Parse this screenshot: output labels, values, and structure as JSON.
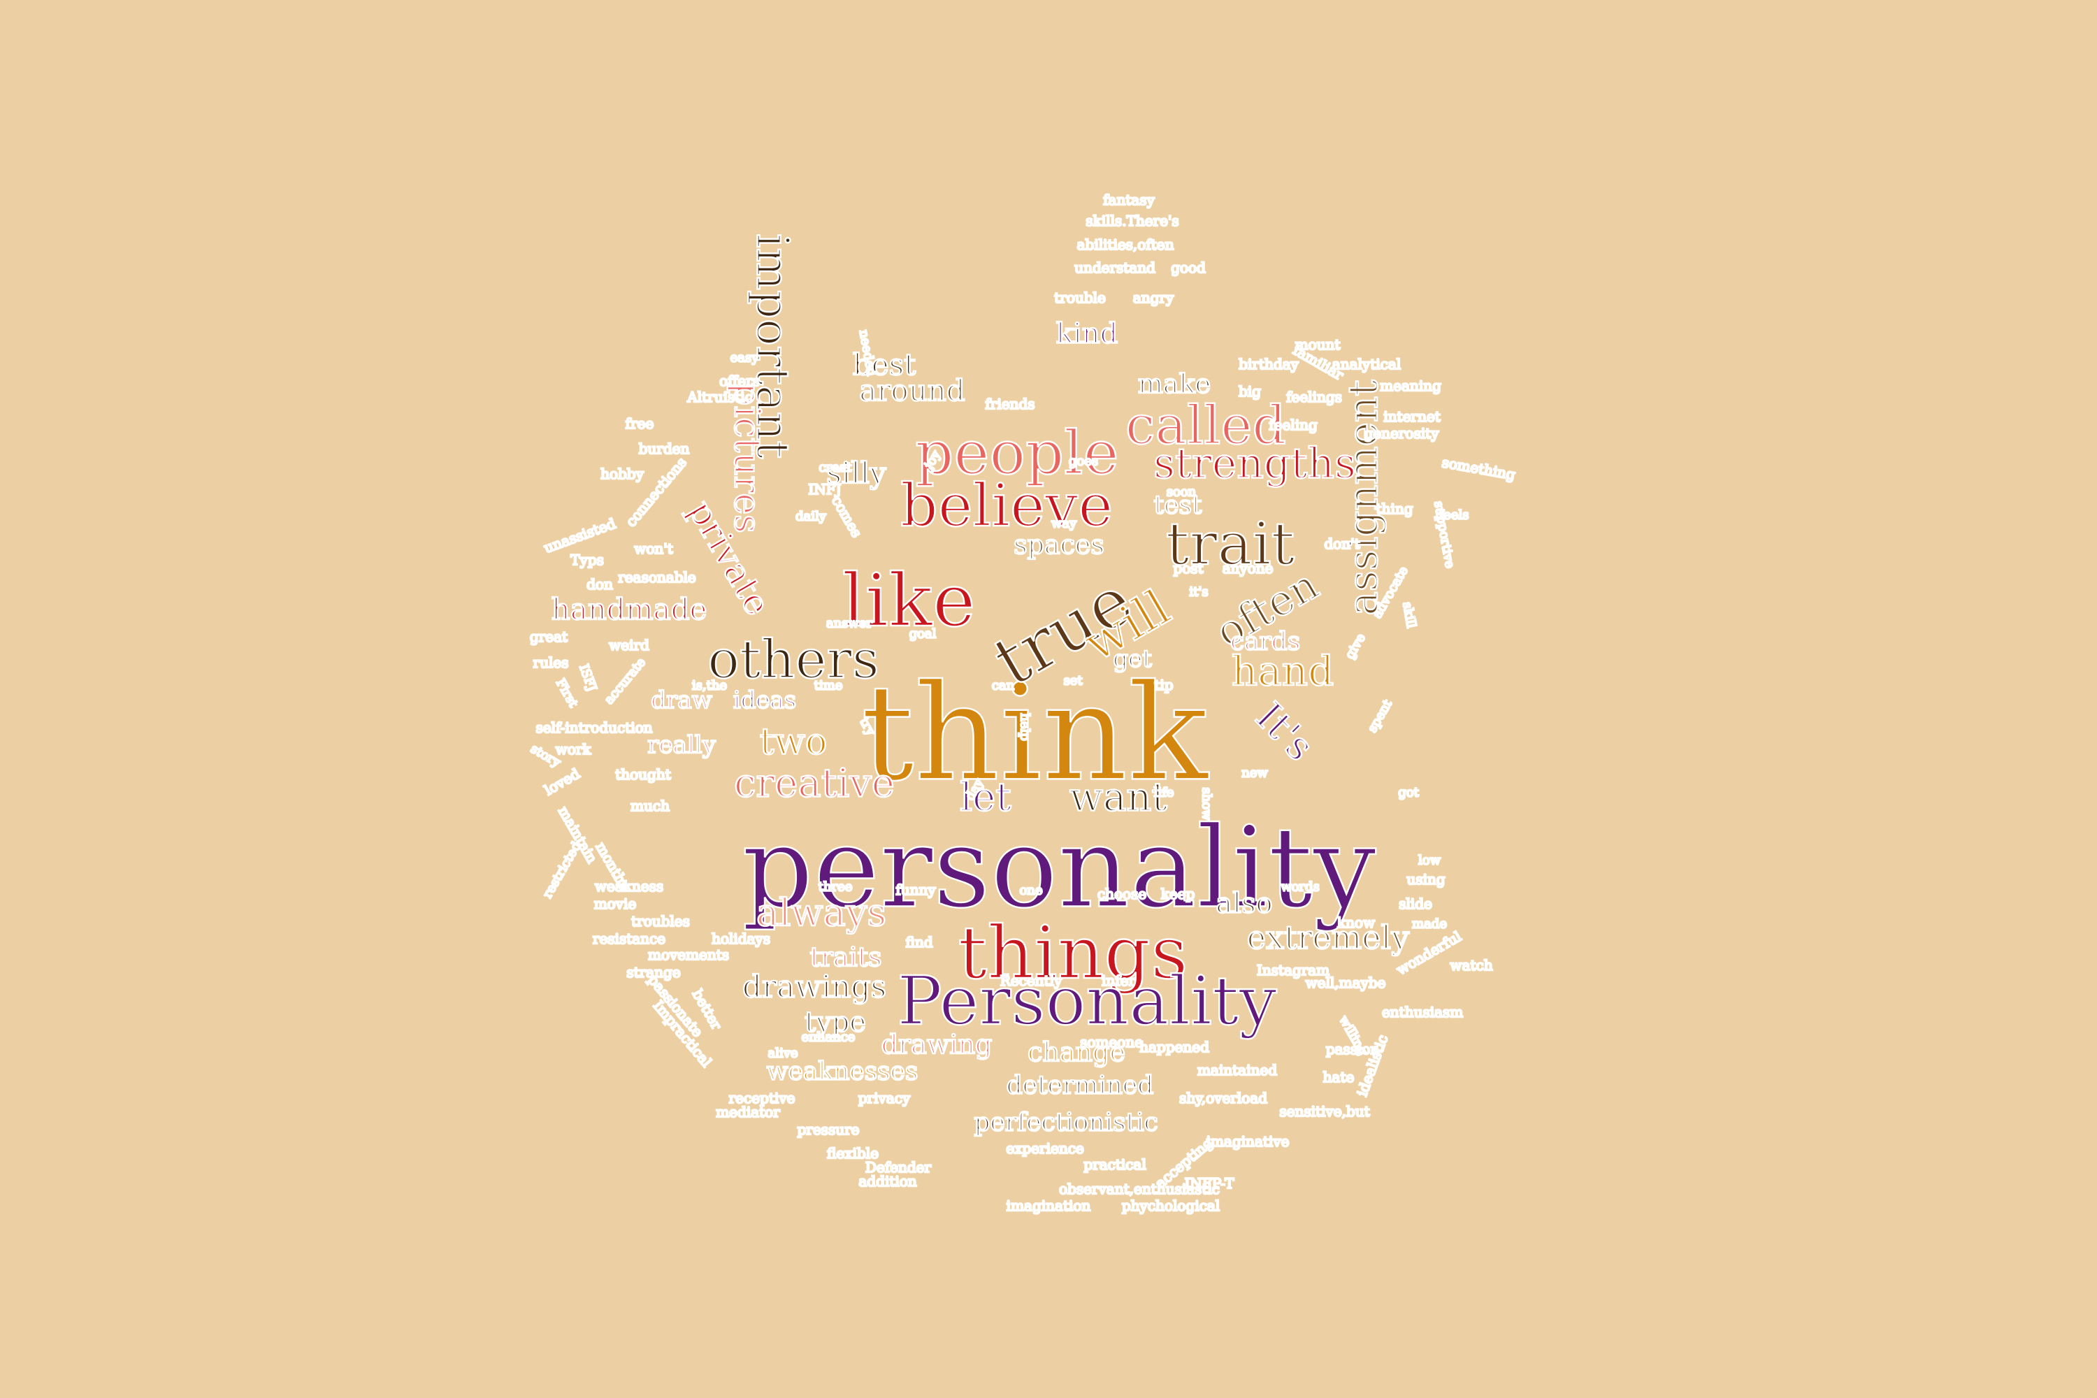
{
  "colors": {
    "background": "#eccfa2",
    "outline": "#ffffff",
    "palette": [
      "#d4870f",
      "#5f1a7c",
      "#c8161e",
      "#e86660",
      "#3f2611",
      "#6b4a22",
      "#9a6b4e",
      "#f08a79"
    ]
  },
  "words": [
    {
      "text": "think",
      "size": 190,
      "color": "#d4870f",
      "rot": 0
    },
    {
      "text": "personality",
      "size": 160,
      "color": "#5f1a7c",
      "rot": 0
    },
    {
      "text": "like",
      "size": 104,
      "color": "#c8161e",
      "rot": 0
    },
    {
      "text": "things",
      "size": 104,
      "color": "#c8161e",
      "rot": 0
    },
    {
      "text": "true",
      "size": 98,
      "color": "#5c3818",
      "rot": -30
    },
    {
      "text": "Personality",
      "size": 96,
      "color": "#5f1a7c",
      "rot": 0
    },
    {
      "text": "people",
      "size": 86,
      "color": "#e86660",
      "rot": 0
    },
    {
      "text": "believe",
      "size": 84,
      "color": "#c8161e",
      "rot": 0
    },
    {
      "text": "trait",
      "size": 84,
      "color": "#5c3818",
      "rot": 0
    },
    {
      "text": "called",
      "size": 76,
      "color": "#e86660",
      "rot": 0
    },
    {
      "text": "others",
      "size": 76,
      "color": "#3f2611",
      "rot": 0
    },
    {
      "text": "will",
      "size": 70,
      "color": "#d4870f",
      "rot": -30
    },
    {
      "text": "important",
      "size": 64,
      "color": "#3f2611",
      "rot": 90
    },
    {
      "text": "strengths",
      "size": 60,
      "color": "#c8161e",
      "rot": 0
    },
    {
      "text": "often",
      "size": 60,
      "color": "#6b4a22",
      "rot": -30
    },
    {
      "text": "hand",
      "size": 58,
      "color": "#d4870f",
      "rot": 0
    },
    {
      "text": "assignment",
      "size": 58,
      "color": "#6b4a22",
      "rot": -90
    },
    {
      "text": "It's",
      "size": 56,
      "color": "#5f1a7c",
      "rot": 45
    },
    {
      "text": "creative",
      "size": 56,
      "color": "#e86660",
      "rot": 0
    },
    {
      "text": "let",
      "size": 56,
      "color": "#5f1a7c",
      "rot": 0
    },
    {
      "text": "want",
      "size": 56,
      "color": "#3f2611",
      "rot": 0
    },
    {
      "text": "always",
      "size": 54,
      "color": "#f08a79",
      "rot": 0
    },
    {
      "text": "two",
      "size": 52,
      "color": "#d4870f",
      "rot": 0
    },
    {
      "text": "pictures",
      "size": 52,
      "color": "#e86660",
      "rot": 90
    },
    {
      "text": "private",
      "size": 50,
      "color": "#c8161e",
      "rot": 60
    },
    {
      "text": "extremely",
      "size": 46,
      "color": "#6b4a22",
      "rot": 0
    },
    {
      "text": "handmade",
      "size": 42,
      "color": "#c8161e",
      "rot": 0
    },
    {
      "text": "drawings",
      "size": 44,
      "color": "#3f2611",
      "rot": 0
    },
    {
      "text": "around",
      "size": 42,
      "color": "#6b4a22",
      "rot": 0
    },
    {
      "text": "best",
      "size": 42,
      "color": "#3f2611",
      "rot": 0
    },
    {
      "text": "make",
      "size": 38,
      "color": "#3f2611",
      "rot": 0
    },
    {
      "text": "kind",
      "size": 40,
      "color": "#5f1a7c",
      "rot": 0
    },
    {
      "text": "spaces",
      "size": 38,
      "color": "#6b4a22",
      "rot": 0
    },
    {
      "text": "silly",
      "size": 42,
      "color": "#3f2611",
      "rot": 0
    },
    {
      "text": "test",
      "size": 36,
      "color": "#9a6b4e",
      "rot": 0
    },
    {
      "text": "get",
      "size": 34,
      "color": "#3f2611",
      "rot": 0
    },
    {
      "text": "cards",
      "size": 36,
      "color": "#e86660",
      "rot": 0
    },
    {
      "text": "also",
      "size": 40,
      "color": "#3f2611",
      "rot": 0
    },
    {
      "text": "type",
      "size": 40,
      "color": "#3f2611",
      "rot": 0
    },
    {
      "text": "drawing",
      "size": 38,
      "color": "#e86660",
      "rot": 0
    },
    {
      "text": "change",
      "size": 38,
      "color": "#d4870f",
      "rot": 0
    },
    {
      "text": "traits",
      "size": 38,
      "color": "#e86660",
      "rot": 0
    },
    {
      "text": "weaknesses",
      "size": 36,
      "color": "#d4870f",
      "rot": 0
    },
    {
      "text": "determined",
      "size": 36,
      "color": "#3f2611",
      "rot": 0
    },
    {
      "text": "perfectionistic",
      "size": 36,
      "color": "#3f2611",
      "rot": 0
    },
    {
      "text": "really",
      "size": 34,
      "color": "#e86660",
      "rot": 0
    },
    {
      "text": "draw",
      "size": 34,
      "color": "#e86660",
      "rot": 0
    },
    {
      "text": "ideas",
      "size": 34,
      "color": "#5f1a7c",
      "rot": 0
    },
    {
      "text": "fantasy",
      "size": 20,
      "color": "#5f1a7c",
      "rot": 0
    },
    {
      "text": "skills.There's",
      "size": 20,
      "color": "#c8161e",
      "rot": 0
    },
    {
      "text": "abilities,often",
      "size": 20,
      "color": "#6b4a22",
      "rot": 0
    },
    {
      "text": "understand",
      "size": 20,
      "color": "#5f1a7c",
      "rot": 0
    },
    {
      "text": "good",
      "size": 20,
      "color": "#6b4a22",
      "rot": 0
    },
    {
      "text": "trouble",
      "size": 20,
      "color": "#6b4a22",
      "rot": 0
    },
    {
      "text": "angry",
      "size": 20,
      "color": "#6b4a22",
      "rot": 0
    },
    {
      "text": "mount",
      "size": 20,
      "color": "#c8161e",
      "rot": 0
    },
    {
      "text": "birthday",
      "size": 20,
      "color": "#9a6b4e",
      "rot": 0
    },
    {
      "text": "familiar",
      "size": 20,
      "color": "#5f1a7c",
      "rot": 30
    },
    {
      "text": "analytical",
      "size": 20,
      "color": "#6b4a22",
      "rot": 0
    },
    {
      "text": "meaning",
      "size": 20,
      "color": "#e86660",
      "rot": 0
    },
    {
      "text": "big",
      "size": 20,
      "color": "#5f1a7c",
      "rot": 0
    },
    {
      "text": "feelings",
      "size": 20,
      "color": "#f08a79",
      "rot": 0
    },
    {
      "text": "internet",
      "size": 20,
      "color": "#3f2611",
      "rot": 0
    },
    {
      "text": "feeling",
      "size": 20,
      "color": "#e86660",
      "rot": 0
    },
    {
      "text": "generosity",
      "size": 20,
      "color": "#d4870f",
      "rot": 0
    },
    {
      "text": "something",
      "size": 20,
      "color": "#6b4a22",
      "rot": 10
    },
    {
      "text": "supportive",
      "size": 18,
      "color": "#f08a79",
      "rot": 80
    },
    {
      "text": "feels",
      "size": 18,
      "color": "#9a6b4e",
      "rot": 0
    },
    {
      "text": "thing",
      "size": 20,
      "color": "#6b4a22",
      "rot": 0
    },
    {
      "text": "don't",
      "size": 20,
      "color": "#c8161e",
      "rot": 0
    },
    {
      "text": "advocate",
      "size": 18,
      "color": "#6b4a22",
      "rot": -60
    },
    {
      "text": "skill",
      "size": 18,
      "color": "#5f1a7c",
      "rot": 80
    },
    {
      "text": "easy",
      "size": 18,
      "color": "#9a6b4e",
      "rot": 0
    },
    {
      "text": "offers",
      "size": 20,
      "color": "#6b4a22",
      "rot": 0
    },
    {
      "text": "needed",
      "size": 18,
      "color": "#c8161e",
      "rot": 80
    },
    {
      "text": "Altruistic",
      "size": 20,
      "color": "#6b4a22",
      "rot": 0
    },
    {
      "text": "friends",
      "size": 20,
      "color": "#6b4a22",
      "rot": 0
    },
    {
      "text": "free",
      "size": 20,
      "color": "#c8161e",
      "rot": 0
    },
    {
      "text": "burden",
      "size": 20,
      "color": "#d4870f",
      "rot": 0
    },
    {
      "text": "joy",
      "size": 18,
      "color": "#f08a79",
      "rot": -60
    },
    {
      "text": "goes",
      "size": 18,
      "color": "#6b4a22",
      "rot": 0
    },
    {
      "text": "creat",
      "size": 18,
      "color": "#f08a79",
      "rot": 0
    },
    {
      "text": "hobby",
      "size": 20,
      "color": "#3f2611",
      "rot": 0
    },
    {
      "text": "INFJ",
      "size": 20,
      "color": "#9a6b4e",
      "rot": 0
    },
    {
      "text": "soon",
      "size": 18,
      "color": "#6b4a22",
      "rot": 0
    },
    {
      "text": "connections",
      "size": 20,
      "color": "#5f1a7c",
      "rot": -50
    },
    {
      "text": "comes",
      "size": 20,
      "color": "#c8161e",
      "rot": 60
    },
    {
      "text": "unassisted",
      "size": 20,
      "color": "#5f1a7c",
      "rot": -20
    },
    {
      "text": "daily",
      "size": 18,
      "color": "#9a6b4e",
      "rot": 0
    },
    {
      "text": "way",
      "size": 18,
      "color": "#9a6b4e",
      "rot": 0
    },
    {
      "text": "Typs",
      "size": 20,
      "color": "#9a6b4e",
      "rot": 0
    },
    {
      "text": "won't",
      "size": 20,
      "color": "#f08a79",
      "rot": 0
    },
    {
      "text": "reasonable",
      "size": 20,
      "color": "#5f1a7c",
      "rot": 0
    },
    {
      "text": "post",
      "size": 20,
      "color": "#c8161e",
      "rot": 0
    },
    {
      "text": "anyone",
      "size": 20,
      "color": "#c8161e",
      "rot": 0
    },
    {
      "text": "it's",
      "size": 18,
      "color": "#f08a79",
      "rot": 0
    },
    {
      "text": "don",
      "size": 20,
      "color": "#c8161e",
      "rot": 0
    },
    {
      "text": "answer",
      "size": 18,
      "color": "#c8161e",
      "rot": 0
    },
    {
      "text": "goal",
      "size": 18,
      "color": "#6b4a22",
      "rot": 0
    },
    {
      "text": "give",
      "size": 18,
      "color": "#e86660",
      "rot": -60
    },
    {
      "text": "great",
      "size": 20,
      "color": "#9a6b4e",
      "rot": 0
    },
    {
      "text": "weird",
      "size": 20,
      "color": "#d4870f",
      "rot": 0
    },
    {
      "text": "rules",
      "size": 20,
      "color": "#3f2611",
      "rot": 0
    },
    {
      "text": "ISFJ",
      "size": 18,
      "color": "#f08a79",
      "rot": 70
    },
    {
      "text": "accurate",
      "size": 18,
      "color": "#d4870f",
      "rot": -50
    },
    {
      "text": "First",
      "size": 18,
      "color": "#d4870f",
      "rot": 60
    },
    {
      "text": "is,the",
      "size": 18,
      "color": "#5f1a7c",
      "rot": 0
    },
    {
      "text": "time",
      "size": 18,
      "color": "#6b4a22",
      "rot": 0
    },
    {
      "text": "can",
      "size": 18,
      "color": "#6b4a22",
      "rot": 0
    },
    {
      "text": "set",
      "size": 18,
      "color": "#9a6b4e",
      "rot": 0
    },
    {
      "text": "tip",
      "size": 20,
      "color": "#c8161e",
      "rot": 0
    },
    {
      "text": "spent",
      "size": 18,
      "color": "#9a6b4e",
      "rot": -60
    },
    {
      "text": "self-introduction",
      "size": 20,
      "color": "#e86660",
      "rot": 0
    },
    {
      "text": "try",
      "size": 18,
      "color": "#f08a79",
      "rot": 60
    },
    {
      "text": "help",
      "size": 18,
      "color": "#c8161e",
      "rot": 90
    },
    {
      "text": "work",
      "size": 20,
      "color": "#9a6b4e",
      "rot": 0
    },
    {
      "text": "story",
      "size": 18,
      "color": "#9a6b4e",
      "rot": 30
    },
    {
      "text": "new",
      "size": 18,
      "color": "#9a6b4e",
      "rot": 0
    },
    {
      "text": "got",
      "size": 18,
      "color": "#6b4a22",
      "rot": 0
    },
    {
      "text": "thought",
      "size": 20,
      "color": "#d4870f",
      "rot": 0
    },
    {
      "text": "loved",
      "size": 20,
      "color": "#d4870f",
      "rot": -30
    },
    {
      "text": "much",
      "size": 20,
      "color": "#6b4a22",
      "rot": 0
    },
    {
      "text": "day",
      "size": 18,
      "color": "#f08a79",
      "rot": -60
    },
    {
      "text": "life",
      "size": 18,
      "color": "#9a6b4e",
      "rot": 0
    },
    {
      "text": "show",
      "size": 18,
      "color": "#9a6b4e",
      "rot": 90
    },
    {
      "text": "maintain",
      "size": 20,
      "color": "#f08a79",
      "rot": 60
    },
    {
      "text": "months",
      "size": 20,
      "color": "#f08a79",
      "rot": 60
    },
    {
      "text": "restricted",
      "size": 18,
      "color": "#9a6b4e",
      "rot": -60
    },
    {
      "text": "low",
      "size": 18,
      "color": "#6b4a22",
      "rot": 0
    },
    {
      "text": "using",
      "size": 20,
      "color": "#5f1a7c",
      "rot": 0
    },
    {
      "text": "weakness",
      "size": 20,
      "color": "#6b4a22",
      "rot": 0
    },
    {
      "text": "three",
      "size": 18,
      "color": "#f08a79",
      "rot": 0
    },
    {
      "text": "funny",
      "size": 20,
      "color": "#d4870f",
      "rot": 0
    },
    {
      "text": "one",
      "size": 18,
      "color": "#9a6b4e",
      "rot": 0
    },
    {
      "text": "choose",
      "size": 20,
      "color": "#e86660",
      "rot": 0
    },
    {
      "text": "keep",
      "size": 20,
      "color": "#6b4a22",
      "rot": 0
    },
    {
      "text": "words",
      "size": 18,
      "color": "#f08a79",
      "rot": 0
    },
    {
      "text": "slide",
      "size": 20,
      "color": "#c8161e",
      "rot": 0
    },
    {
      "text": "movie",
      "size": 20,
      "color": "#9a6b4e",
      "rot": 0
    },
    {
      "text": "troubles",
      "size": 20,
      "color": "#5f1a7c",
      "rot": 0
    },
    {
      "text": "know",
      "size": 20,
      "color": "#5f1a7c",
      "rot": 0
    },
    {
      "text": "made",
      "size": 18,
      "color": "#f08a79",
      "rot": 0
    },
    {
      "text": "resistance",
      "size": 20,
      "color": "#5f1a7c",
      "rot": 0
    },
    {
      "text": "holidays",
      "size": 20,
      "color": "#d4870f",
      "rot": 0
    },
    {
      "text": "find",
      "size": 20,
      "color": "#6b4a22",
      "rot": 0
    },
    {
      "text": "wonderful",
      "size": 20,
      "color": "#6b4a22",
      "rot": -30
    },
    {
      "text": "watch",
      "size": 20,
      "color": "#6b4a22",
      "rot": 0
    },
    {
      "text": "movements",
      "size": 20,
      "color": "#f08a79",
      "rot": 0
    },
    {
      "text": "Instagram",
      "size": 20,
      "color": "#5f1a7c",
      "rot": 0
    },
    {
      "text": "strange",
      "size": 20,
      "color": "#d4870f",
      "rot": 0
    },
    {
      "text": "Recently",
      "size": 20,
      "color": "#9a6b4e",
      "rot": 0
    },
    {
      "text": "infer",
      "size": 20,
      "color": "#c8161e",
      "rot": 0
    },
    {
      "text": "well,maybe",
      "size": 20,
      "color": "#f08a79",
      "rot": 0
    },
    {
      "text": "passionate",
      "size": 20,
      "color": "#c8161e",
      "rot": 50
    },
    {
      "text": "better",
      "size": 20,
      "color": "#d4870f",
      "rot": 60
    },
    {
      "text": "enthusiasm",
      "size": 20,
      "color": "#6b4a22",
      "rot": 0
    },
    {
      "text": "enhance",
      "size": 18,
      "color": "#6b4a22",
      "rot": 0
    },
    {
      "text": "willing",
      "size": 18,
      "color": "#d4870f",
      "rot": 60
    },
    {
      "text": "passion",
      "size": 20,
      "color": "#f08a79",
      "rot": 0
    },
    {
      "text": "someone",
      "size": 20,
      "color": "#f08a79",
      "rot": 0
    },
    {
      "text": "happened",
      "size": 20,
      "color": "#6b4a22",
      "rot": 0
    },
    {
      "text": "Impractical",
      "size": 20,
      "color": "#c8161e",
      "rot": 50
    },
    {
      "text": "alive",
      "size": 18,
      "color": "#6b4a22",
      "rot": 0
    },
    {
      "text": "maintained",
      "size": 20,
      "color": "#9a6b4e",
      "rot": 0
    },
    {
      "text": "hate",
      "size": 20,
      "color": "#6b4a22",
      "rot": 0
    },
    {
      "text": "idealistic",
      "size": 20,
      "color": "#d4870f",
      "rot": -70
    },
    {
      "text": "receptive",
      "size": 20,
      "color": "#c8161e",
      "rot": 0
    },
    {
      "text": "privacy",
      "size": 20,
      "color": "#c8161e",
      "rot": 0
    },
    {
      "text": "mediator",
      "size": 20,
      "color": "#d4870f",
      "rot": 0
    },
    {
      "text": "shy,overload",
      "size": 20,
      "color": "#d4870f",
      "rot": 0
    },
    {
      "text": "sensitive,but",
      "size": 20,
      "color": "#6b4a22",
      "rot": 0
    },
    {
      "text": "pressure",
      "size": 20,
      "color": "#6b4a22",
      "rot": 0
    },
    {
      "text": "imaginative",
      "size": 20,
      "color": "#6b4a22",
      "rot": 0
    },
    {
      "text": "flexible",
      "size": 20,
      "color": "#d4870f",
      "rot": 0
    },
    {
      "text": "experience",
      "size": 20,
      "color": "#c8161e",
      "rot": 0
    },
    {
      "text": "accepting",
      "size": 20,
      "color": "#c8161e",
      "rot": -40
    },
    {
      "text": "Defender",
      "size": 20,
      "color": "#f08a79",
      "rot": 0
    },
    {
      "text": "practical",
      "size": 20,
      "color": "#6b4a22",
      "rot": 0
    },
    {
      "text": "addition",
      "size": 20,
      "color": "#9a6b4e",
      "rot": 0
    },
    {
      "text": "observant,enthusiastic",
      "size": 20,
      "color": "#c8161e",
      "rot": 0
    },
    {
      "text": "INFP-T",
      "size": 20,
      "color": "#d4870f",
      "rot": 0
    },
    {
      "text": "imagination",
      "size": 20,
      "color": "#f08a79",
      "rot": 0
    },
    {
      "text": "phychological",
      "size": 20,
      "color": "#f08a79",
      "rot": 0
    }
  ]
}
